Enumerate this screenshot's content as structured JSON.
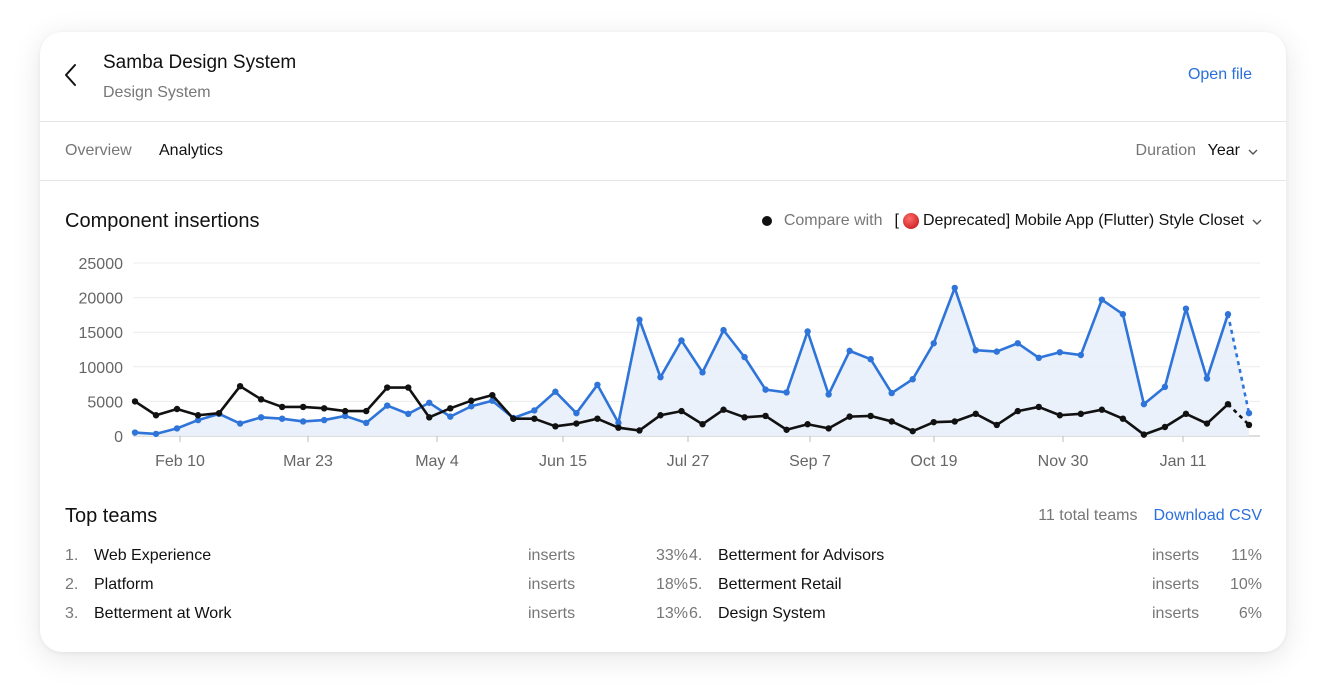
{
  "header": {
    "title": "Samba Design System",
    "subtitle": "Design System",
    "open_file": "Open file"
  },
  "tabs": [
    {
      "label": "Overview",
      "active": false
    },
    {
      "label": "Analytics",
      "active": true
    }
  ],
  "duration": {
    "label": "Duration",
    "value": "Year"
  },
  "chart_section": {
    "title": "Component insertions",
    "compare_label": "Compare with",
    "compare_value_prefix": "[",
    "compare_value_rest": " Deprecated] Mobile App (Flutter) Style Closet",
    "compare_icon": "red-circle-icon"
  },
  "colors": {
    "accent": "#2a6fdb",
    "series_blue": "#2e74d9",
    "series_black": "#111111",
    "area_fill": "#e8effa"
  },
  "chart_data": {
    "type": "line",
    "ylim": [
      0,
      25000
    ],
    "yticks": [
      "25000",
      "20000",
      "15000",
      "10000",
      "5000",
      "0"
    ],
    "xtick_labels": [
      "Feb 10",
      "Mar 23",
      "May 4",
      "Jun 15",
      "Jul 27",
      "Sep 7",
      "Oct 19",
      "Nov 30",
      "Jan 11"
    ],
    "grid": true,
    "series": [
      {
        "color": "#2e74d9",
        "area": true,
        "last_segment_dashed": true,
        "values": [
          500,
          300,
          1100,
          2300,
          3200,
          1800,
          2700,
          2500,
          2100,
          2300,
          2900,
          1900,
          4400,
          3200,
          4800,
          2800,
          4300,
          5100,
          2600,
          3700,
          6400,
          3300,
          7400,
          1900,
          16800,
          8500,
          13800,
          9200,
          15300,
          11400,
          6700,
          6300,
          15100,
          6000,
          12300,
          11100,
          6200,
          8200,
          13400,
          21400,
          12400,
          12200,
          13400,
          11300,
          12100,
          11700,
          19700,
          17600,
          4600,
          7100,
          18400,
          8300,
          17600,
          3300
        ]
      },
      {
        "color": "#111111",
        "area": false,
        "last_segment_dashed": true,
        "values": [
          5000,
          3000,
          3900,
          3000,
          3300,
          7200,
          5300,
          4200,
          4200,
          4000,
          3600,
          3600,
          7000,
          7000,
          2700,
          4000,
          5100,
          5900,
          2500,
          2500,
          1400,
          1800,
          2500,
          1200,
          800,
          3000,
          3600,
          1700,
          3800,
          2700,
          2900,
          900,
          1700,
          1100,
          2800,
          2900,
          2100,
          700,
          2000,
          2100,
          3200,
          1600,
          3600,
          4200,
          3000,
          3200,
          3800,
          2500,
          200,
          1300,
          3200,
          1800,
          4600,
          1600
        ]
      }
    ]
  },
  "top_teams": {
    "title": "Top teams",
    "total": "11 total teams",
    "download": "Download CSV",
    "metric_label": "inserts",
    "teams": [
      {
        "rank": "1.",
        "name": "Web Experience",
        "pct": "33%"
      },
      {
        "rank": "2.",
        "name": "Platform",
        "pct": "18%"
      },
      {
        "rank": "3.",
        "name": "Betterment at Work",
        "pct": "13%"
      },
      {
        "rank": "4.",
        "name": "Betterment for Advisors",
        "pct": "11%"
      },
      {
        "rank": "5.",
        "name": "Betterment Retail",
        "pct": "10%"
      },
      {
        "rank": "6.",
        "name": "Design System",
        "pct": "6%"
      }
    ]
  }
}
